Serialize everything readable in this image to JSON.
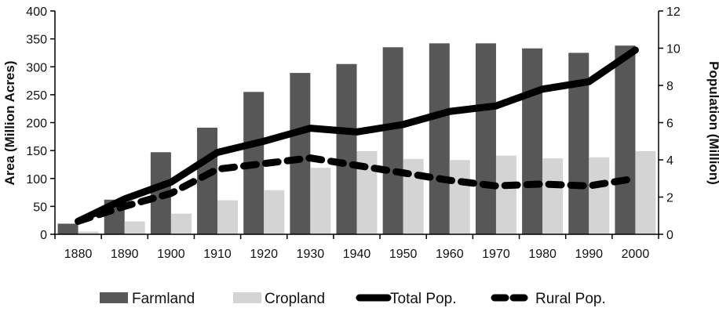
{
  "chart_data": {
    "type": "bar",
    "categories": [
      "1880",
      "1890",
      "1900",
      "1910",
      "1920",
      "1930",
      "1940",
      "1950",
      "1960",
      "1970",
      "1980",
      "1990",
      "2000"
    ],
    "ylabel_left": "Area (Million Acres)",
    "ylabel_right": "Population (Million)",
    "ylim_left": [
      0,
      400
    ],
    "yticks_left": [
      0,
      50,
      100,
      150,
      200,
      250,
      300,
      350,
      400
    ],
    "ylim_right": [
      0,
      12
    ],
    "yticks_right": [
      0,
      2,
      4,
      6,
      8,
      10,
      12
    ],
    "grid": false,
    "legend_position": "bottom",
    "series": [
      {
        "name": "Farmland",
        "kind": "bar",
        "axis": "left",
        "color": "#575757",
        "values": [
          19,
          62,
          147,
          191,
          255,
          289,
          305,
          335,
          342,
          342,
          333,
          325,
          338
        ]
      },
      {
        "name": "Cropland",
        "kind": "bar",
        "axis": "left",
        "color": "#d4d4d4",
        "values": [
          5,
          23,
          37,
          61,
          79,
          119,
          149,
          135,
          133,
          141,
          136,
          138,
          149
        ]
      },
      {
        "name": "Total Pop.",
        "kind": "line",
        "style": "solid",
        "axis": "right",
        "color": "#000000",
        "values": [
          0.7,
          1.9,
          2.8,
          4.4,
          5.0,
          5.7,
          5.5,
          5.9,
          6.6,
          6.9,
          7.8,
          8.2,
          9.9
        ]
      },
      {
        "name": "Rural Pop.",
        "kind": "line",
        "style": "dashed",
        "axis": "right",
        "color": "#000000",
        "values": [
          0.7,
          1.5,
          2.2,
          3.5,
          3.8,
          4.1,
          3.7,
          3.3,
          2.9,
          2.6,
          2.7,
          2.6,
          3.0
        ]
      }
    ]
  }
}
